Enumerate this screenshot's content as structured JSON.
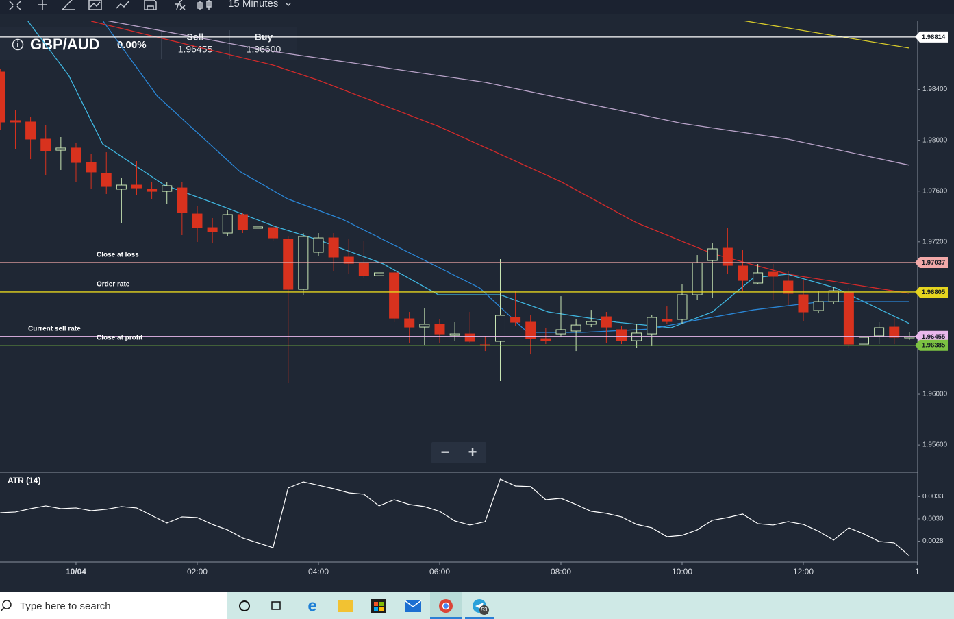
{
  "toolbar": {
    "timeframe": "15 Minutes"
  },
  "header": {
    "symbol": "GBP/AUD",
    "change": "0.00%",
    "sell_label": "Sell",
    "sell": "1.96455",
    "buy_label": "Buy",
    "buy": "1.96600"
  },
  "zoom": [
    "−",
    "+"
  ],
  "taskbar": {
    "search": "Type here to search",
    "badge": "53"
  },
  "chart_data": [
    {
      "type": "candlestick",
      "up_color": "#c9e6b4",
      "down_color": "#d8321e",
      "x": [
        -1.25,
        -1,
        -0.75,
        -0.5,
        -0.25,
        0,
        0.25,
        0.5,
        0.75,
        1,
        1.25,
        1.5,
        1.75,
        2,
        2.25,
        2.5,
        2.75,
        3,
        3.25,
        3.5,
        3.75,
        4,
        4.25,
        4.5,
        4.75,
        5,
        5.25,
        5.5,
        5.75,
        6,
        6.25,
        6.5,
        6.75,
        7,
        7.25,
        7.5,
        7.75,
        8,
        8.25,
        8.5,
        8.75,
        9,
        9.25,
        9.5,
        9.75,
        10,
        10.25,
        10.5,
        10.75,
        11,
        11.25,
        11.5,
        11.75,
        12,
        12.25,
        12.5,
        12.75,
        13,
        13.25,
        13.5,
        13.75
      ],
      "open": [
        1.98538,
        1.98155,
        1.98144,
        1.98009,
        1.97922,
        1.97939,
        1.97825,
        1.97739,
        1.97615,
        1.97647,
        1.97615,
        1.97598,
        1.97625,
        1.9742,
        1.97312,
        1.97269,
        1.97415,
        1.97307,
        1.97312,
        1.9722,
        1.96826,
        1.97118,
        1.97231,
        1.9708,
        1.97037,
        1.96934,
        1.96956,
        1.96594,
        1.96529,
        1.96551,
        1.96464,
        1.96475,
        1.96389,
        1.96416,
        1.96605,
        1.96567,
        1.96437,
        1.96475,
        1.96497,
        1.96551,
        1.9661,
        1.96508,
        1.96421,
        1.96475,
        1.96589,
        1.96589,
        1.96783,
        1.97053,
        1.9715,
        1.9701,
        1.96875,
        1.96961,
        1.96891,
        1.96783,
        1.96659,
        1.96729,
        1.96799,
        1.96394,
        1.96459,
        1.96529,
        1.96443
      ],
      "high": [
        1.98565,
        1.98241,
        1.98187,
        1.98117,
        1.98025,
        1.97982,
        1.97895,
        1.97906,
        1.97701,
        1.97836,
        1.97674,
        1.97674,
        1.97674,
        1.97485,
        1.97388,
        1.97447,
        1.97431,
        1.97404,
        1.9735,
        1.97242,
        1.97269,
        1.97269,
        1.97269,
        1.97226,
        1.9721,
        1.96999,
        1.96972,
        1.96648,
        1.96675,
        1.96594,
        1.96567,
        1.96648,
        1.96459,
        1.97064,
        1.9681,
        1.96621,
        1.96524,
        1.96772,
        1.96594,
        1.96664,
        1.96648,
        1.9654,
        1.96551,
        1.96621,
        1.96691,
        1.96864,
        1.97096,
        1.97188,
        1.97307,
        1.97134,
        1.97026,
        1.97026,
        1.96972,
        1.96902,
        1.9681,
        1.96848,
        1.96837,
        1.96583,
        1.96567,
        1.9661,
        1.96486
      ],
      "low": [
        1.98079,
        1.97928,
        1.97852,
        1.97723,
        1.97766,
        1.97674,
        1.9762,
        1.97577,
        1.9735,
        1.97566,
        1.97539,
        1.97496,
        1.97253,
        1.97199,
        1.97188,
        1.97247,
        1.97269,
        1.97215,
        1.97204,
        1.96092,
        1.96783,
        1.97091,
        1.96972,
        1.96945,
        1.96918,
        1.9688,
        1.96567,
        1.96405,
        1.96389,
        1.96405,
        1.96421,
        1.96405,
        1.9634,
        1.96103,
        1.9654,
        1.96313,
        1.96394,
        1.96448,
        1.9634,
        1.96529,
        1.96405,
        1.96394,
        1.96367,
        1.96378,
        1.96556,
        1.96556,
        1.96745,
        1.96756,
        1.96945,
        1.9681,
        1.96864,
        1.9674,
        1.96702,
        1.96578,
        1.96637,
        1.96713,
        1.96367,
        1.96383,
        1.96394,
        1.96394,
        1.96427
      ],
      "close": [
        1.98144,
        1.98144,
        1.98009,
        1.97917,
        1.97939,
        1.97825,
        1.9775,
        1.97636,
        1.97647,
        1.97625,
        1.97598,
        1.97642,
        1.97431,
        1.97312,
        1.9728,
        1.97415,
        1.97296,
        1.97318,
        1.97231,
        1.96826,
        1.97242,
        1.97231,
        1.9708,
        1.97031,
        1.96934,
        1.96956,
        1.96599,
        1.96529,
        1.96551,
        1.96475,
        1.96475,
        1.96416,
        1.96383,
        1.96621,
        1.96567,
        1.96437,
        1.96421,
        1.96508,
        1.96545,
        1.96572,
        1.96529,
        1.96421,
        1.96481,
        1.96605,
        1.96572,
        1.96783,
        1.97037,
        1.97145,
        1.97015,
        1.96896,
        1.96956,
        1.96929,
        1.96794,
        1.96648,
        1.96729,
        1.96815,
        1.96394,
        1.96448,
        1.96524,
        1.96448,
        1.96454
      ],
      "series": [
        {
          "color": "#d42a2a",
          "x": [
            0.25,
            3.25,
            4,
            6,
            8,
            9.25,
            10.5,
            11.75,
            13.75
          ],
          "values": [
            1.98938,
            1.98592,
            1.98473,
            1.98106,
            1.97674,
            1.9735,
            1.97107,
            1.96945,
            1.96794
          ]
        },
        {
          "color": "#b9a3c9",
          "x": [
            0.5,
            3.25,
            6.75,
            10,
            11.75,
            13.75
          ],
          "values": [
            1.98943,
            1.987,
            1.98457,
            1.98133,
            1.98009,
            1.97804
          ]
        },
        {
          "color": "#d9cc2a",
          "x": [
            11,
            13.75
          ],
          "values": [
            1.98943,
            1.98727
          ]
        },
        {
          "color": "#3fb6e0",
          "x": [
            -0.8,
            -0.12,
            0.44,
            1.46,
            2.24,
            3.27,
            4,
            5.07,
            5.98,
            7,
            7.79,
            8.92,
            9.82,
            10.5,
            11.18,
            11.74,
            12.53,
            13.75
          ],
          "values": [
            1.98943,
            1.98511,
            1.97971,
            1.97647,
            1.97512,
            1.97323,
            1.97215,
            1.97026,
            1.96783,
            1.96783,
            1.96648,
            1.96567,
            1.96524,
            1.96648,
            1.96918,
            1.96945,
            1.96837,
            1.96556
          ]
        },
        {
          "color": "#2a86d6",
          "x": [
            0.44,
            1.34,
            2.7,
            3.49,
            4.4,
            5.53,
            6.66,
            7.45,
            8.35,
            9.48,
            10.05,
            11.18,
            12.31,
            13.75
          ],
          "values": [
            1.98943,
            1.98349,
            1.97755,
            1.97539,
            1.97377,
            1.97107,
            1.96837,
            1.96486,
            1.96486,
            1.96513,
            1.96567,
            1.96664,
            1.96729,
            1.96729
          ]
        }
      ],
      "price_lines": [
        {
          "value": 1.98814,
          "color": "#ffffff"
        },
        {
          "value": 1.97037,
          "label": "Close at loss",
          "color": "#f2a9a9"
        },
        {
          "value": 1.96805,
          "label": "Order rate",
          "color": "#e6d51f"
        },
        {
          "value": 1.96455,
          "label": "Current sell rate",
          "color": "#e9b8ec"
        },
        {
          "value": 1.96385,
          "label": "Close at profit",
          "color": "#7cc242"
        }
      ],
      "xlim": [
        -1.254,
        13.887
      ],
      "ylim": [
        1.9539,
        1.98943
      ],
      "yticks": [
        {
          "value": 1.984,
          "label": "1.98400"
        },
        {
          "value": 1.98,
          "label": "1.98000"
        },
        {
          "value": 1.976,
          "label": "1.97600"
        },
        {
          "value": 1.972,
          "label": "1.97200"
        },
        {
          "value": 1.96,
          "label": "1.96000"
        },
        {
          "value": 1.956,
          "label": "1.95600"
        }
      ]
    },
    {
      "type": "line",
      "title": "ATR (14)",
      "color": "#ffffff",
      "x": [
        -1.25,
        -1,
        -0.75,
        -0.5,
        -0.25,
        0,
        0.25,
        0.5,
        0.75,
        1,
        1.25,
        1.5,
        1.75,
        2,
        2.25,
        2.5,
        2.75,
        3,
        3.25,
        3.5,
        3.75,
        4,
        4.25,
        4.5,
        4.75,
        5,
        5.25,
        5.5,
        5.75,
        6,
        6.25,
        6.5,
        6.75,
        7,
        7.25,
        7.5,
        7.75,
        8,
        8.25,
        8.5,
        8.75,
        9,
        9.25,
        9.5,
        9.75,
        10,
        10.25,
        10.5,
        10.75,
        11,
        11.25,
        11.5,
        11.75,
        12,
        12.25,
        12.5,
        12.75,
        13,
        13.25,
        13.5,
        13.75
      ],
      "values": [
        0.003069,
        0.003077,
        0.003115,
        0.003146,
        0.003115,
        0.003123,
        0.003092,
        0.003108,
        0.003138,
        0.003123,
        0.003038,
        0.002954,
        0.003023,
        0.003015,
        0.002938,
        0.002877,
        0.002785,
        0.002731,
        0.002677,
        0.003346,
        0.003415,
        0.003377,
        0.003338,
        0.003292,
        0.003277,
        0.003146,
        0.003215,
        0.003162,
        0.003138,
        0.003085,
        0.002977,
        0.002931,
        0.002969,
        0.003446,
        0.003369,
        0.003362,
        0.003215,
        0.003231,
        0.003162,
        0.003085,
        0.003062,
        0.003023,
        0.002938,
        0.0029,
        0.0028,
        0.002815,
        0.002877,
        0.002985,
        0.003015,
        0.003054,
        0.002946,
        0.002931,
        0.002969,
        0.002938,
        0.002862,
        0.002762,
        0.0029,
        0.002831,
        0.002746,
        0.002731,
        0.002585
      ],
      "xlim": [
        -1.254,
        13.887
      ],
      "ylim": [
        0.002515,
        0.003515
      ],
      "yticks": [
        {
          "value": 0.00325,
          "label": "0.0033"
        },
        {
          "value": 0.003,
          "label": "0.0030"
        },
        {
          "value": 0.00275,
          "label": "0.0028"
        }
      ],
      "xticks": [
        {
          "value": 0,
          "label": "10/04"
        },
        {
          "value": 2,
          "label": "02:00"
        },
        {
          "value": 4,
          "label": "04:00"
        },
        {
          "value": 6,
          "label": "06:00"
        },
        {
          "value": 8,
          "label": "08:00"
        },
        {
          "value": 10,
          "label": "10:00"
        },
        {
          "value": 12,
          "label": "12:00"
        },
        {
          "value": 13.88,
          "label": "1"
        }
      ]
    }
  ]
}
